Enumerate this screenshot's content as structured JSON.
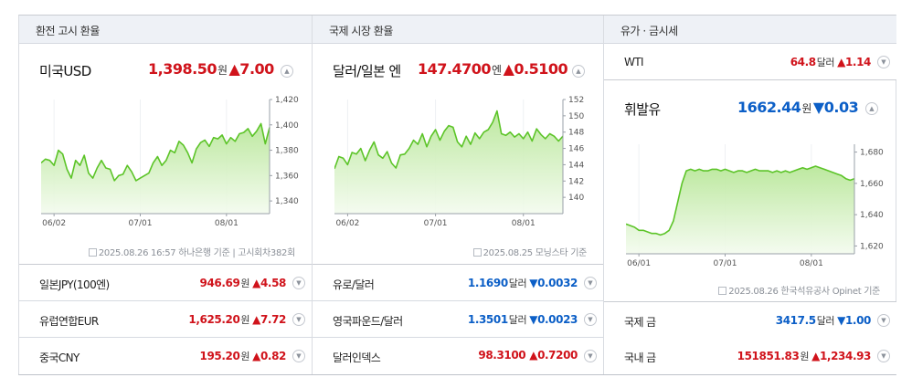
{
  "panels": [
    {
      "header": "환전 고시 환율",
      "main": {
        "name": "미국USD",
        "value": "1,398.50",
        "unit": "원",
        "change": "▲7.00",
        "source": "2025.08.26 16:57 하나은행 기준 | 고시회차382회"
      },
      "rows": [
        {
          "name": "일본JPY(100엔)",
          "value": "946.69",
          "unit": "원",
          "change": "▲4.58"
        },
        {
          "name": "유럽연합EUR",
          "value": "1,625.20",
          "unit": "원",
          "change": "▲7.72"
        },
        {
          "name": "중국CNY",
          "value": "195.20",
          "unit": "원",
          "change": "▲0.82"
        }
      ]
    },
    {
      "header": "국제 시장 환율",
      "main": {
        "name": "달러/일본 엔",
        "value": "147.4700",
        "unit": "엔",
        "change": "▲0.5100",
        "source": "2025.08.25 모닝스타 기준"
      },
      "rows": [
        {
          "name": "유로/달러",
          "value": "1.1690",
          "unit": "달러",
          "change": "▼0.0032"
        },
        {
          "name": "영국파운드/달러",
          "value": "1.3501",
          "unit": "달러",
          "change": "▼0.0023"
        },
        {
          "name": "달러인덱스",
          "value": "98.3100",
          "unit": "",
          "change": "▲0.7200"
        }
      ]
    },
    {
      "header": "유가 · 금시세",
      "top_row": {
        "name": "WTI",
        "value": "64.8",
        "unit": "달러",
        "change": "▲1.14"
      },
      "main": {
        "name": "휘발유",
        "value": "1662.44",
        "unit": "원",
        "change": "▼0.03",
        "source": "2025.08.26 한국석유공사 Opinet 기준"
      },
      "rows": [
        {
          "name": "국제 금",
          "value": "3417.5",
          "unit": "달러",
          "change": "▼1.00"
        },
        {
          "name": "국내 금",
          "value": "151851.83",
          "unit": "원",
          "change": "▲1,234.93"
        }
      ]
    }
  ],
  "chart_data": [
    {
      "type": "area",
      "x_labels": [
        "06/02",
        "07/01",
        "08/01"
      ],
      "x_label_index": [
        3,
        23,
        43
      ],
      "ylim": [
        1330,
        1420
      ],
      "yticks": [
        1340,
        1360,
        1380,
        1400,
        1420
      ],
      "values": [
        1370,
        1373,
        1372,
        1368,
        1380,
        1377,
        1365,
        1358,
        1372,
        1368,
        1376,
        1362,
        1358,
        1366,
        1372,
        1366,
        1365,
        1356,
        1360,
        1361,
        1368,
        1363,
        1356,
        1358,
        1360,
        1362,
        1370,
        1375,
        1368,
        1372,
        1380,
        1378,
        1387,
        1384,
        1378,
        1370,
        1381,
        1386,
        1388,
        1383,
        1390,
        1389,
        1392,
        1385,
        1390,
        1387,
        1393,
        1394,
        1397,
        1391,
        1395,
        1401,
        1385,
        1398
      ]
    },
    {
      "type": "area",
      "x_labels": [
        "06/02",
        "07/01",
        "08/01"
      ],
      "x_label_index": [
        3,
        23,
        43
      ],
      "ylim": [
        138,
        152
      ],
      "yticks": [
        140,
        142,
        144,
        146,
        148,
        150,
        152
      ],
      "values": [
        143.5,
        145,
        144.8,
        144,
        145.5,
        145.3,
        146,
        144.5,
        145.8,
        146.8,
        145.2,
        144.8,
        145.6,
        144.2,
        143.6,
        145.2,
        145.3,
        146,
        147,
        146.5,
        147.8,
        146.2,
        147.5,
        148.3,
        147,
        148.1,
        148.8,
        148.6,
        146.8,
        146.2,
        147.5,
        146.5,
        147.9,
        147.2,
        148,
        148.3,
        149.2,
        150.6,
        147.8,
        147.6,
        148,
        147.4,
        147.8,
        147.2,
        148,
        146.9,
        148.4,
        147.7,
        147.2,
        147.8,
        147.5,
        146.9,
        147.5
      ]
    },
    {
      "type": "area",
      "x_labels": [
        "06/01",
        "07/01",
        "08/01"
      ],
      "x_label_index": [
        3,
        23,
        43
      ],
      "ylim": [
        1615,
        1685
      ],
      "yticks": [
        1620,
        1640,
        1660,
        1680
      ],
      "values": [
        1634,
        1633,
        1632,
        1630,
        1630,
        1629,
        1628,
        1628,
        1627,
        1628,
        1630,
        1636,
        1648,
        1660,
        1668,
        1669,
        1668,
        1669,
        1668,
        1668,
        1669,
        1669,
        1668,
        1669,
        1668,
        1667,
        1668,
        1668,
        1667,
        1668,
        1669,
        1668,
        1668,
        1668,
        1667,
        1668,
        1667,
        1668,
        1667,
        1668,
        1669,
        1670,
        1669,
        1670,
        1671,
        1670,
        1669,
        1668,
        1667,
        1666,
        1665,
        1663,
        1662,
        1663
      ]
    }
  ]
}
